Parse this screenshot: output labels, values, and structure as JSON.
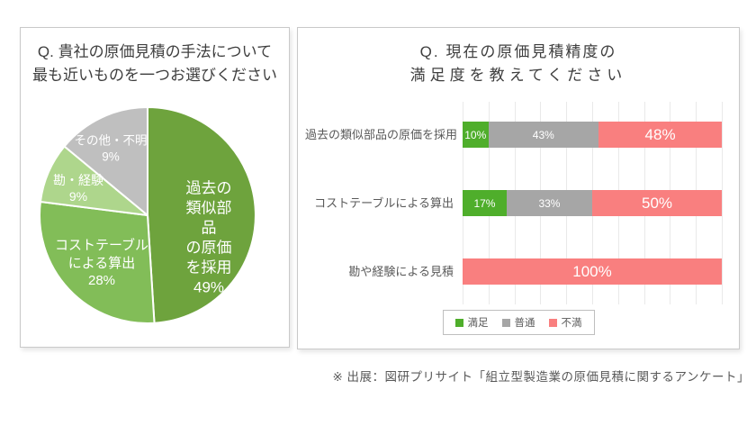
{
  "pie_panel": {
    "title_line1": "Q. 貴社の原価見積の手法について",
    "title_line2": "最も近いものを一つお選びください"
  },
  "bar_panel": {
    "title_line1": "Q. 現在の原価見積精度の",
    "title_line2": "満足度を教えてください"
  },
  "footer": {
    "text": "※ 出展：図研プリサイト「組立型製造業の原価見積に関するアンケート」"
  },
  "chart_data": [
    {
      "type": "pie",
      "title": "Q. 貴社の原価見積の手法について最も近いものを一つお選びください",
      "labels": [
        "過去の類似部品の原価を採用",
        "コストテーブルによる算出",
        "勘・経験",
        "その他・不明"
      ],
      "labels_multiline": [
        "過去の類似部品\nの原価を採用",
        "コストテーブル\nによる算出",
        "勘・経験",
        "その他・不明"
      ],
      "values": [
        49,
        28,
        9,
        9
      ],
      "pct_labels": [
        "49%",
        "28%",
        "9%",
        "9%"
      ],
      "unit": "%",
      "colors": [
        "#6ea33d",
        "#82bd58",
        "#aed68c",
        "#bfbfbf"
      ],
      "label_text_color": "#ffffff",
      "start_angle_deg": 0,
      "direction": "clockwise"
    },
    {
      "type": "bar",
      "orientation": "horizontal",
      "stacked": true,
      "title": "Q. 現在の原価見積精度の満足度を教えてください",
      "categories": [
        "過去の類似部品の原価を採用",
        "コストテーブルによる算出",
        "勘や経験による見積"
      ],
      "series": [
        {
          "name": "満足",
          "color": "#4fae2b",
          "values": [
            10,
            17,
            0
          ],
          "labels": [
            "10%",
            "17%",
            ""
          ]
        },
        {
          "name": "普通",
          "color": "#a6a6a6",
          "values": [
            43,
            33,
            0
          ],
          "labels": [
            "43%",
            "33%",
            ""
          ]
        },
        {
          "name": "不満",
          "color": "#f97f7f",
          "values": [
            48,
            50,
            100
          ],
          "labels": [
            "48%",
            "50%",
            "100%"
          ]
        }
      ],
      "xlim": [
        0,
        100
      ],
      "unit": "%",
      "grid": true,
      "gridline_step": 10,
      "legend_position": "bottom"
    }
  ]
}
